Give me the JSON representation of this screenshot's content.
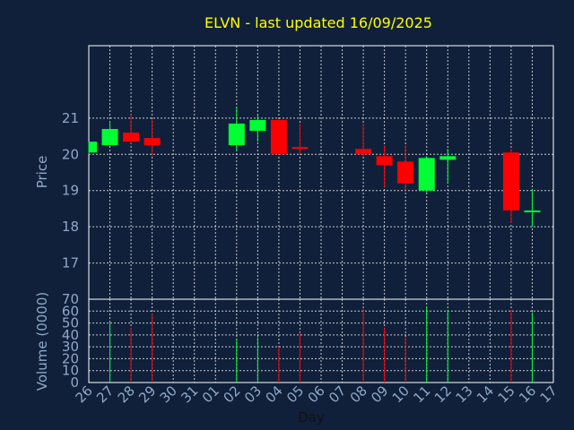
{
  "chart_data": {
    "type": "candlestick",
    "title": "ELVN - last updated 16/09/2025",
    "xlabel": "Day",
    "ylabel": "Price",
    "volume_label": "Volume (0000)",
    "price_ylim": [
      16,
      23
    ],
    "price_ticks": [
      "17",
      "18",
      "19",
      "20",
      "21"
    ],
    "volume_ylim": [
      0,
      70
    ],
    "volume_ticks": [
      "0",
      "10",
      "20",
      "30",
      "40",
      "50",
      "60",
      "70"
    ],
    "days": [
      "26",
      "27",
      "28",
      "29",
      "30",
      "31",
      "01",
      "02",
      "03",
      "04",
      "05",
      "06",
      "07",
      "08",
      "09",
      "10",
      "11",
      "12",
      "13",
      "14",
      "15",
      "16",
      "17"
    ],
    "grid": true,
    "colors": {
      "up": "#00ff33",
      "down": "#ff0000",
      "background": "#10203a",
      "title": "#ffff00",
      "axis_text": "#8fa8c8"
    },
    "candles": [
      {
        "day": "26",
        "open": 20.05,
        "high": 20.35,
        "low": 20.0,
        "close": 20.35,
        "volume": 0
      },
      {
        "day": "27",
        "open": 20.25,
        "high": 20.9,
        "low": 20.25,
        "close": 20.7,
        "volume": 50
      },
      {
        "day": "28",
        "open": 20.6,
        "high": 21.1,
        "low": 20.3,
        "close": 20.35,
        "volume": 46
      },
      {
        "day": "29",
        "open": 20.45,
        "high": 20.95,
        "low": 19.95,
        "close": 20.25,
        "volume": 58
      },
      {
        "day": "02",
        "open": 20.25,
        "high": 21.3,
        "low": 20.1,
        "close": 20.85,
        "volume": 37
      },
      {
        "day": "03",
        "open": 20.65,
        "high": 21.1,
        "low": 20.35,
        "close": 20.95,
        "volume": 38
      },
      {
        "day": "04",
        "open": 20.95,
        "high": 20.95,
        "low": 20.0,
        "close": 20.0,
        "volume": 30
      },
      {
        "day": "05",
        "open": 20.2,
        "high": 20.85,
        "low": 20.0,
        "close": 20.15,
        "volume": 42
      },
      {
        "day": "08",
        "open": 20.15,
        "high": 20.85,
        "low": 19.95,
        "close": 20.0,
        "volume": 62
      },
      {
        "day": "09",
        "open": 19.95,
        "high": 20.25,
        "low": 19.1,
        "close": 19.7,
        "volume": 46
      },
      {
        "day": "10",
        "open": 19.8,
        "high": 20.25,
        "low": 19.0,
        "close": 19.2,
        "volume": 38
      },
      {
        "day": "11",
        "open": 19.0,
        "high": 19.95,
        "low": 18.95,
        "close": 19.9,
        "volume": 64
      },
      {
        "day": "12",
        "open": 19.85,
        "high": 20.15,
        "low": 19.2,
        "close": 19.95,
        "volume": 61
      },
      {
        "day": "15",
        "open": 20.05,
        "high": 20.15,
        "low": 18.1,
        "close": 18.45,
        "volume": 61
      },
      {
        "day": "16",
        "open": 18.4,
        "high": 19.05,
        "low": 18.0,
        "close": 18.45,
        "volume": 59
      }
    ]
  }
}
